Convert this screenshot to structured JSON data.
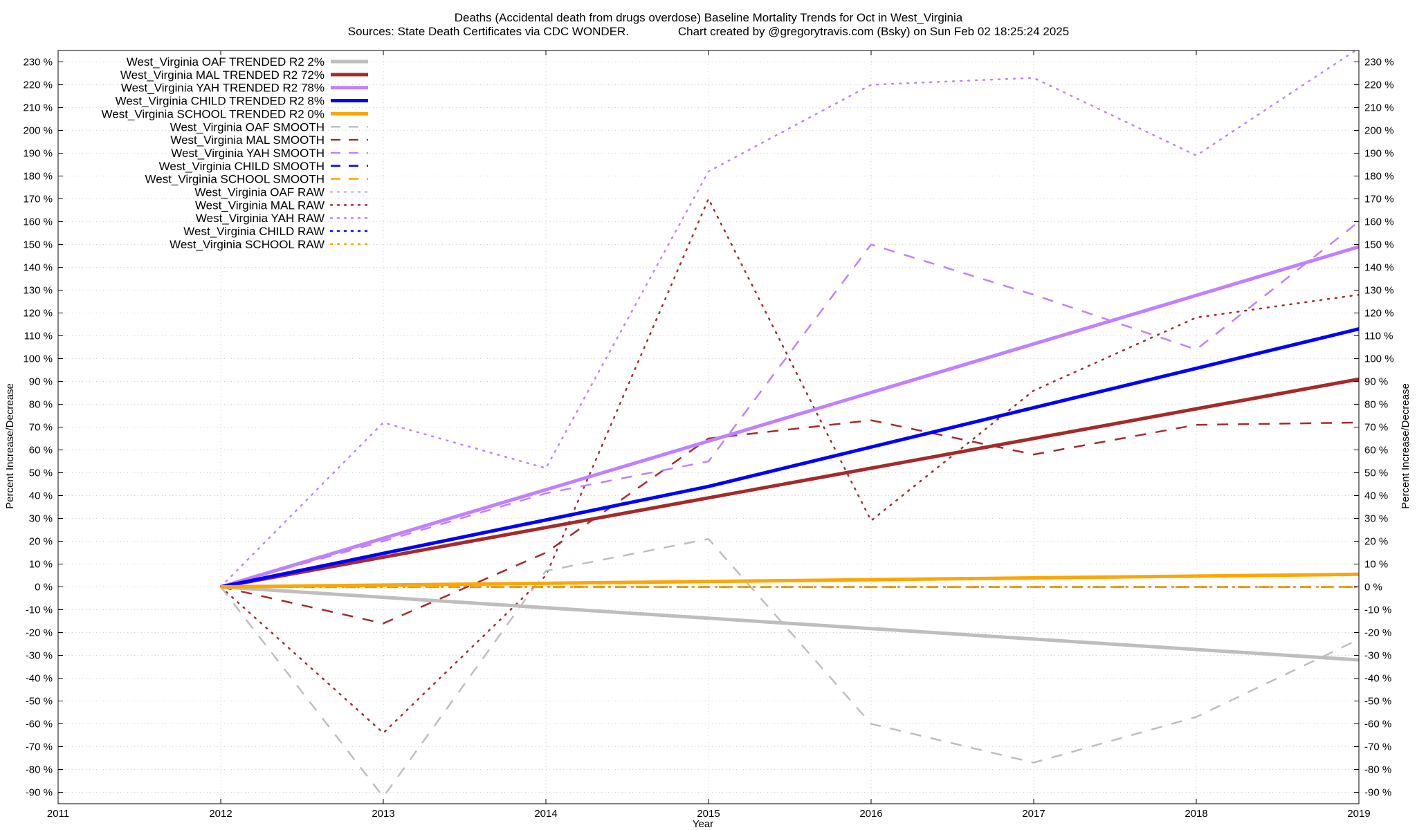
{
  "chart_data": {
    "type": "line",
    "title": "Deaths (Accidental death from drugs overdose)  Baseline Mortality Trends for Oct in West_Virginia",
    "subtitle": "Sources: State Death Certificates via CDC WONDER.               Chart created by @gregorytravis.com (Bsky) on Sun Feb 02 18:25:24 2025",
    "xlabel": "Year",
    "ylabel": "Percent Increase/Decrease",
    "ylabel_right": "Percent Increase/Decrease",
    "xlim": [
      2011,
      2019
    ],
    "ylim": [
      -95,
      235
    ],
    "x_ticks": [
      2011,
      2012,
      2013,
      2014,
      2015,
      2016,
      2017,
      2018,
      2019
    ],
    "y_ticks": [
      -90,
      -80,
      -70,
      -60,
      -50,
      -40,
      -30,
      -20,
      -10,
      0,
      10,
      20,
      30,
      40,
      50,
      60,
      70,
      80,
      90,
      100,
      110,
      120,
      130,
      140,
      150,
      160,
      170,
      180,
      190,
      200,
      210,
      220,
      230
    ],
    "y_tick_suffix": " %",
    "grid": true,
    "legend_position": "top-left",
    "series": [
      {
        "name": "West_Virginia OAF TRENDED R2  2%",
        "style": "solid",
        "color": "#bebebe",
        "x": [
          2012,
          2019
        ],
        "y": [
          0,
          -32
        ]
      },
      {
        "name": "West_Virginia MAL TRENDED R2  72%",
        "style": "solid",
        "color": "#a52a2a",
        "x": [
          2012,
          2019
        ],
        "y": [
          0,
          91
        ]
      },
      {
        "name": "West_Virginia YAH TRENDED R2  78%",
        "style": "solid",
        "color": "#c080ff",
        "x": [
          2012,
          2019
        ],
        "y": [
          0,
          149
        ]
      },
      {
        "name": "West_Virginia CHILD TRENDED R2  8%",
        "style": "solid",
        "color": "#0000ff",
        "x": [
          2012,
          2015,
          2019
        ],
        "y": [
          0,
          44,
          113
        ]
      },
      {
        "name": "West_Virginia SCHOOL TRENDED R2  0%",
        "style": "solid",
        "color": "#ffa500",
        "x": [
          2012,
          2019
        ],
        "y": [
          0,
          5.5
        ]
      },
      {
        "name": "West_Virginia OAF SMOOTH",
        "style": "dashed",
        "color": "#bebebe",
        "x": [
          2012,
          2013,
          2014,
          2015,
          2016,
          2017,
          2018,
          2019
        ],
        "y": [
          0,
          -92,
          7,
          21,
          -60,
          -77,
          -57,
          -23
        ]
      },
      {
        "name": "West_Virginia MAL SMOOTH",
        "style": "dashed",
        "color": "#a52a2a",
        "x": [
          2012,
          2013,
          2014,
          2015,
          2016,
          2017,
          2018,
          2019
        ],
        "y": [
          0,
          -16,
          15,
          65,
          73,
          58,
          71,
          72
        ]
      },
      {
        "name": "West_Virginia YAH SMOOTH",
        "style": "dashed",
        "color": "#c080ff",
        "x": [
          2012,
          2013,
          2014,
          2015,
          2016,
          2017,
          2018,
          2019
        ],
        "y": [
          0,
          20,
          41,
          55,
          150,
          128,
          104,
          160
        ]
      },
      {
        "name": "West_Virginia CHILD SMOOTH",
        "style": "dashed",
        "color": "#0000ff",
        "x": [
          2012,
          2019
        ],
        "y": [
          0,
          0
        ]
      },
      {
        "name": "West_Virginia SCHOOL SMOOTH",
        "style": "dashed",
        "color": "#ffa500",
        "x": [
          2012,
          2019
        ],
        "y": [
          0,
          0
        ]
      },
      {
        "name": "West_Virginia OAF RAW",
        "style": "dotted",
        "color": "#bebebe",
        "x": [
          2012,
          2019
        ],
        "y": [
          0,
          0
        ]
      },
      {
        "name": "West_Virginia MAL RAW",
        "style": "dotted",
        "color": "#a52a2a",
        "x": [
          2012,
          2013,
          2014,
          2015,
          2016,
          2017,
          2018,
          2019
        ],
        "y": [
          0,
          -64,
          5,
          170,
          29,
          86,
          118,
          128
        ]
      },
      {
        "name": "West_Virginia YAH RAW",
        "style": "dotted",
        "color": "#c080ff",
        "x": [
          2012,
          2013,
          2014,
          2015,
          2016,
          2017,
          2018,
          2019
        ],
        "y": [
          0,
          72,
          52,
          182,
          220,
          223,
          189,
          236
        ]
      },
      {
        "name": "West_Virginia CHILD RAW",
        "style": "dotted",
        "color": "#0000ff",
        "x": [
          2012,
          2019
        ],
        "y": [
          0,
          0
        ]
      },
      {
        "name": "West_Virginia SCHOOL RAW",
        "style": "dotted",
        "color": "#ffa500",
        "x": [
          2012,
          2019
        ],
        "y": [
          0,
          0
        ]
      }
    ]
  }
}
